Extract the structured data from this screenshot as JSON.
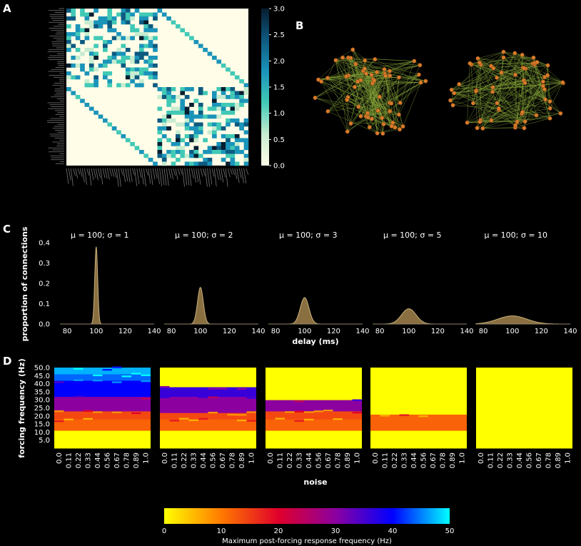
{
  "panels": {
    "A": "A",
    "B": "B",
    "C": "C",
    "D": "D"
  },
  "panel_a": {
    "colorbar_ticks": [
      "3.0",
      "2.5",
      "2.0",
      "1.5",
      "1.0",
      "0.5",
      "0.0"
    ],
    "cmap": [
      "#fffde7",
      "#c7ecd0",
      "#41c9b6",
      "#1b94ba",
      "#0e5a80",
      "#071e30"
    ]
  },
  "panel_b": {
    "node_color": "#d97b2a",
    "edge_color": "#8aaa3a"
  },
  "panel_c": {
    "ylabel": "proportion of connections",
    "xlabel": "delay (ms)",
    "yticks": [
      "0.0",
      "0.1",
      "0.2",
      "0.3",
      "0.4"
    ],
    "xticks": [
      "80",
      "100",
      "120",
      "140"
    ],
    "fill_color": "#8a7040",
    "titles": [
      "μ = 100; σ = 1",
      "μ = 100; σ = 2",
      "μ = 100; σ = 3",
      "μ = 100; σ = 5",
      "μ = 100; σ = 10"
    ]
  },
  "panel_d": {
    "ylabel": "forcing frequency (Hz)",
    "xlabel": "noise",
    "yticks": [
      "50.0",
      "45.0",
      "40.0",
      "35.0",
      "30.0",
      "25.0",
      "20.0",
      "15.0",
      "10.0",
      "5.0"
    ],
    "xticks": [
      "0.0",
      "0.11",
      "0.22",
      "0.33",
      "0.44",
      "0.56",
      "0.67",
      "0.78",
      "0.89",
      "1.0"
    ]
  },
  "colorbar": {
    "label": "Maximum post-forcing response frequency (Hz)",
    "ticks": [
      "0",
      "10",
      "20",
      "30",
      "40",
      "50"
    ],
    "stops": [
      "#ffff00",
      "#ff7a00",
      "#e0002a",
      "#8c00a0",
      "#0000ff",
      "#00ffff"
    ]
  },
  "chart_data": [
    {
      "type": "heatmap",
      "panel": "A",
      "description_values": "structural connectivity matrix, two hemispheric blocks",
      "zlim": [
        0,
        3.0
      ]
    },
    {
      "type": "area",
      "panel": "C",
      "xlabel": "delay (ms)",
      "ylabel": "proportion of connections",
      "xlim": [
        75,
        140
      ],
      "ylim": [
        0,
        0.4
      ],
      "series": [
        {
          "mu": 100,
          "sigma": 1,
          "peak": 0.38
        },
        {
          "mu": 100,
          "sigma": 2,
          "peak": 0.18
        },
        {
          "mu": 100,
          "sigma": 3,
          "peak": 0.13
        },
        {
          "mu": 100,
          "sigma": 5,
          "peak": 0.075
        },
        {
          "mu": 100,
          "sigma": 10,
          "peak": 0.04
        }
      ]
    },
    {
      "type": "heatmap",
      "panel": "D",
      "xlabel": "noise",
      "ylabel": "forcing frequency (Hz)",
      "zlabel": "Maximum post-forcing response frequency (Hz)",
      "zlim": [
        0,
        50
      ],
      "x": [
        "0.0",
        "0.11",
        "0.22",
        "0.33",
        "0.44",
        "0.56",
        "0.67",
        "0.78",
        "0.89",
        "1.0"
      ],
      "y_range": [
        0,
        50
      ],
      "bands": [
        [
          {
            "from": 0,
            "to": 11,
            "value": 0
          },
          {
            "from": 11,
            "to": 18,
            "value": 12
          },
          {
            "from": 18,
            "to": 23,
            "value": 14
          },
          {
            "from": 23,
            "to": 32,
            "value": 30
          },
          {
            "from": 32,
            "to": 42,
            "value": 40
          },
          {
            "from": 42,
            "to": 46,
            "value": 44
          },
          {
            "from": 46,
            "to": 50,
            "value": 47
          }
        ],
        [
          {
            "from": 0,
            "to": 11,
            "value": 0
          },
          {
            "from": 11,
            "to": 18,
            "value": 12
          },
          {
            "from": 18,
            "to": 22,
            "value": 14
          },
          {
            "from": 22,
            "to": 32,
            "value": 30
          },
          {
            "from": 32,
            "to": 38,
            "value": 36
          },
          {
            "from": 38,
            "to": 50,
            "value": 0
          }
        ],
        [
          {
            "from": 0,
            "to": 11,
            "value": 0
          },
          {
            "from": 11,
            "to": 18,
            "value": 12
          },
          {
            "from": 18,
            "to": 23,
            "value": 14
          },
          {
            "from": 23,
            "to": 30,
            "value": 30
          },
          {
            "from": 30,
            "to": 50,
            "value": 0
          }
        ],
        [
          {
            "from": 0,
            "to": 11,
            "value": 0
          },
          {
            "from": 11,
            "to": 21,
            "value": 12
          },
          {
            "from": 21,
            "to": 50,
            "value": 0
          }
        ],
        [
          {
            "from": 0,
            "to": 50,
            "value": 0
          }
        ]
      ]
    }
  ]
}
